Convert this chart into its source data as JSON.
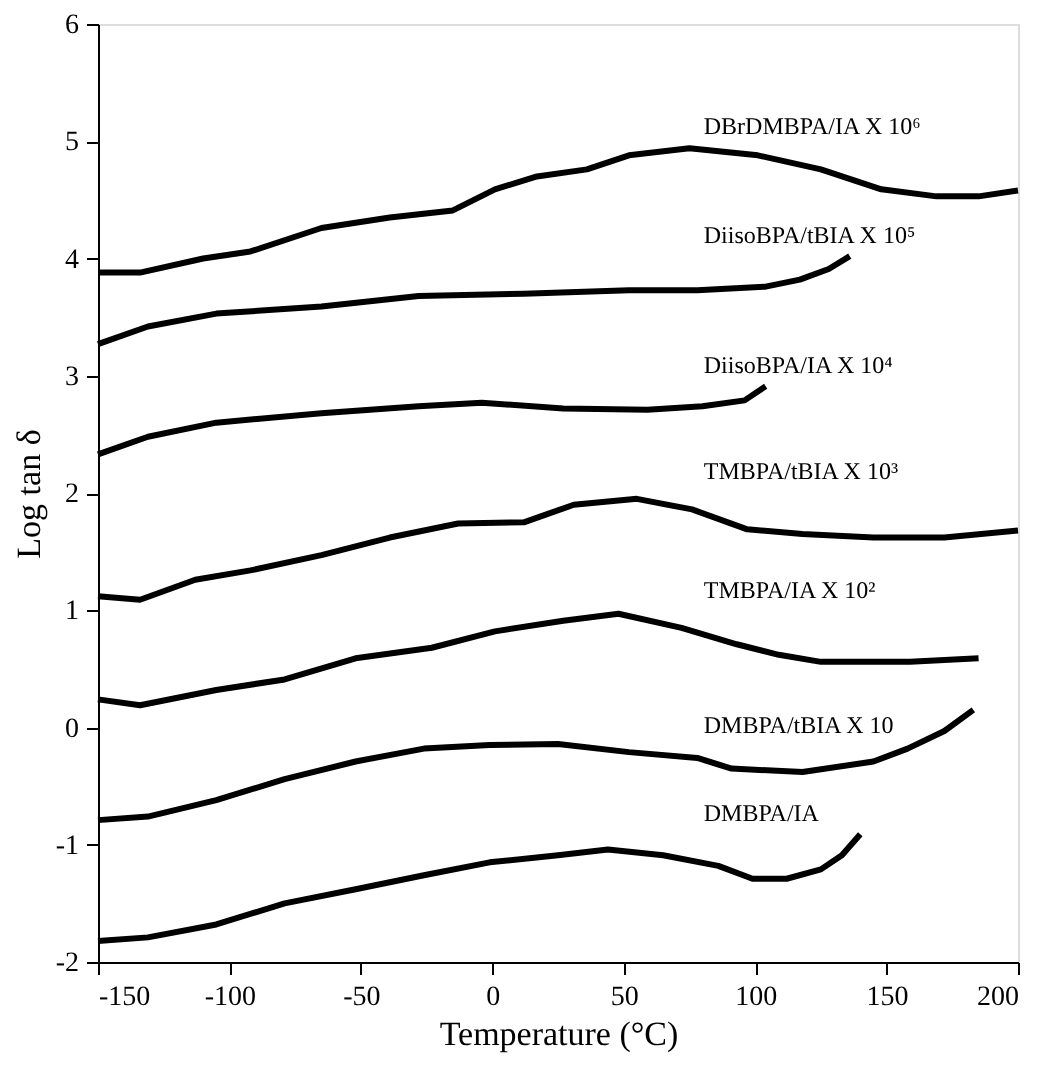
{
  "chart_data": {
    "type": "line",
    "xlabel": "Temperature (°C)",
    "ylabel": "Log tan δ",
    "xlim": [
      -150,
      200
    ],
    "ylim": [
      -2,
      6
    ],
    "xticks": [
      -150,
      -100,
      -50,
      0,
      50,
      100,
      150,
      200
    ],
    "yticks": [
      -2,
      -1,
      0,
      1,
      2,
      3,
      4,
      5,
      6
    ],
    "grid": false,
    "legend": false,
    "marker": "none",
    "line_style": "solid",
    "series": [
      {
        "name": "DBrDMBPA/IA X 10⁶",
        "color": "#000000",
        "x": [
          -150,
          -134,
          -110,
          -92,
          -65,
          -39,
          -15,
          1,
          17,
          36,
          52,
          75,
          101,
          125,
          148,
          169,
          185,
          200
        ],
        "values": [
          3.88,
          3.88,
          4.0,
          4.06,
          4.26,
          4.35,
          4.41,
          4.59,
          4.7,
          4.76,
          4.88,
          4.94,
          4.88,
          4.76,
          4.59,
          4.53,
          4.53,
          4.58
        ]
      },
      {
        "name": "DiisoBPA/tBIA X 10⁵",
        "color": "#000000",
        "x": [
          -150,
          -131,
          -105,
          -65,
          -28,
          12,
          52,
          78,
          104,
          117,
          128,
          136
        ],
        "values": [
          3.27,
          3.42,
          3.53,
          3.59,
          3.68,
          3.7,
          3.73,
          3.73,
          3.76,
          3.82,
          3.91,
          4.02
        ]
      },
      {
        "name": "DiisoBPA/IA X 10⁴",
        "color": "#000000",
        "x": [
          -150,
          -131,
          -105,
          -65,
          -28,
          -4,
          27,
          59,
          80,
          96,
          104
        ],
        "values": [
          2.33,
          2.48,
          2.6,
          2.68,
          2.74,
          2.77,
          2.72,
          2.71,
          2.74,
          2.79,
          2.91
        ]
      },
      {
        "name": "TMBPA/tBIA X 10³",
        "color": "#000000",
        "x": [
          -150,
          -134,
          -113,
          -92,
          -65,
          -39,
          -13,
          12,
          31,
          55,
          76,
          97,
          118,
          145,
          172,
          200
        ],
        "values": [
          1.12,
          1.09,
          1.26,
          1.34,
          1.47,
          1.62,
          1.74,
          1.75,
          1.9,
          1.95,
          1.86,
          1.69,
          1.65,
          1.62,
          1.62,
          1.68
        ]
      },
      {
        "name": "TMBPA/IA X 10²",
        "color": "#000000",
        "x": [
          -150,
          -134,
          -105,
          -79,
          -52,
          -23,
          1,
          27,
          48,
          72,
          93,
          109,
          125,
          159,
          185
        ],
        "values": [
          0.24,
          0.19,
          0.32,
          0.41,
          0.59,
          0.68,
          0.82,
          0.91,
          0.97,
          0.85,
          0.71,
          0.62,
          0.56,
          0.56,
          0.59
        ]
      },
      {
        "name": "DMBPA/tBIA X 10",
        "color": "#000000",
        "x": [
          -150,
          -131,
          -105,
          -79,
          -52,
          -26,
          -1,
          25,
          52,
          78,
          91,
          118,
          145,
          158,
          172,
          183
        ],
        "values": [
          -0.79,
          -0.76,
          -0.62,
          -0.44,
          -0.29,
          -0.18,
          -0.15,
          -0.14,
          -0.21,
          -0.26,
          -0.35,
          -0.38,
          -0.29,
          -0.18,
          -0.03,
          0.15
        ]
      },
      {
        "name": "DMBPA/IA",
        "color": "#000000",
        "x": [
          -150,
          -131,
          -105,
          -79,
          -52,
          -26,
          -1,
          25,
          44,
          65,
          86,
          99,
          112,
          125,
          133,
          140
        ],
        "values": [
          -1.82,
          -1.79,
          -1.68,
          -1.5,
          -1.38,
          -1.26,
          -1.15,
          -1.09,
          -1.04,
          -1.09,
          -1.18,
          -1.29,
          -1.29,
          -1.21,
          -1.09,
          -0.91
        ]
      }
    ]
  }
}
